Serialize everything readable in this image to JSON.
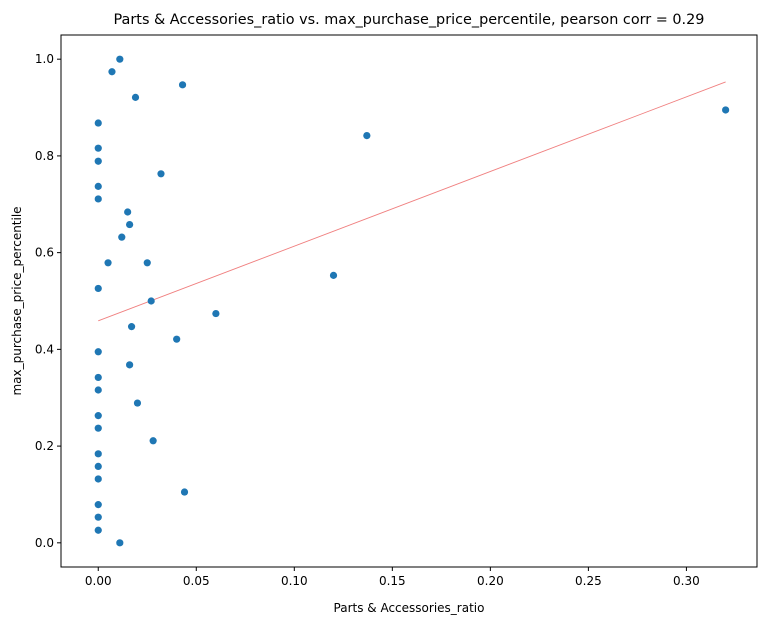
{
  "chart_data": {
    "type": "scatter",
    "title": "Parts & Accessories_ratio vs. max_purchase_price_percentile, pearson corr = 0.29",
    "xlabel": "Parts & Accessories_ratio",
    "ylabel": "max_purchase_price_percentile",
    "xlim": [
      -0.019,
      0.336
    ],
    "ylim": [
      -0.05,
      1.05
    ],
    "xticks": [
      0.0,
      0.05,
      0.1,
      0.15,
      0.2,
      0.25,
      0.3
    ],
    "xtick_labels": [
      "0.00",
      "0.05",
      "0.10",
      "0.15",
      "0.20",
      "0.25",
      "0.30"
    ],
    "yticks": [
      0.0,
      0.2,
      0.4,
      0.6,
      0.8,
      1.0
    ],
    "ytick_labels": [
      "0.0",
      "0.2",
      "0.4",
      "0.6",
      "0.8",
      "1.0"
    ],
    "grid": false,
    "colors": {
      "points": "#1f77b4",
      "trendline": "#f08080"
    },
    "points": [
      {
        "x": 0.011,
        "y": 1.0
      },
      {
        "x": 0.007,
        "y": 0.974
      },
      {
        "x": 0.043,
        "y": 0.947
      },
      {
        "x": 0.019,
        "y": 0.921
      },
      {
        "x": 0.32,
        "y": 0.895
      },
      {
        "x": 0.0,
        "y": 0.868
      },
      {
        "x": 0.137,
        "y": 0.842
      },
      {
        "x": 0.0,
        "y": 0.816
      },
      {
        "x": 0.0,
        "y": 0.789
      },
      {
        "x": 0.032,
        "y": 0.763
      },
      {
        "x": 0.0,
        "y": 0.737
      },
      {
        "x": 0.0,
        "y": 0.711
      },
      {
        "x": 0.015,
        "y": 0.684
      },
      {
        "x": 0.016,
        "y": 0.658
      },
      {
        "x": 0.012,
        "y": 0.632
      },
      {
        "x": 0.005,
        "y": 0.579
      },
      {
        "x": 0.025,
        "y": 0.579
      },
      {
        "x": 0.12,
        "y": 0.553
      },
      {
        "x": 0.0,
        "y": 0.526
      },
      {
        "x": 0.027,
        "y": 0.5
      },
      {
        "x": 0.06,
        "y": 0.474
      },
      {
        "x": 0.017,
        "y": 0.447
      },
      {
        "x": 0.04,
        "y": 0.421
      },
      {
        "x": 0.0,
        "y": 0.395
      },
      {
        "x": 0.016,
        "y": 0.368
      },
      {
        "x": 0.0,
        "y": 0.342
      },
      {
        "x": 0.0,
        "y": 0.316
      },
      {
        "x": 0.02,
        "y": 0.289
      },
      {
        "x": 0.0,
        "y": 0.263
      },
      {
        "x": 0.0,
        "y": 0.237
      },
      {
        "x": 0.028,
        "y": 0.211
      },
      {
        "x": 0.0,
        "y": 0.184
      },
      {
        "x": 0.0,
        "y": 0.158
      },
      {
        "x": 0.0,
        "y": 0.132
      },
      {
        "x": 0.044,
        "y": 0.105
      },
      {
        "x": 0.0,
        "y": 0.079
      },
      {
        "x": 0.0,
        "y": 0.053
      },
      {
        "x": 0.0,
        "y": 0.026
      },
      {
        "x": 0.011,
        "y": 0.0
      }
    ],
    "trendline": {
      "x": [
        0.0,
        0.32
      ],
      "y": [
        0.459,
        0.953
      ]
    }
  }
}
